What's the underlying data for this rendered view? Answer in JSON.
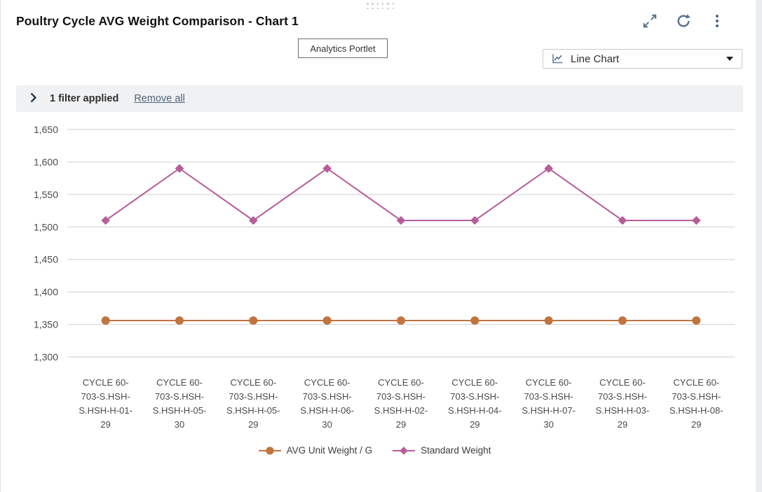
{
  "header": {
    "title": "Poultry Cycle AVG Weight Comparison - Chart 1",
    "portlet_label": "Analytics Portlet"
  },
  "toolbar": {
    "chart_type_label": "Line Chart"
  },
  "filter_bar": {
    "applied_label": "1 filter applied",
    "remove_all_label": "Remove all"
  },
  "chart_data": {
    "type": "line",
    "title": "Poultry Cycle AVG Weight Comparison - Chart 1",
    "categories": [
      "CYCLE 60-703-S.HSH-S.HSH-H-01-29",
      "CYCLE 60-703-S.HSH-S.HSH-H-05-30",
      "CYCLE 60-703-S.HSH-S.HSH-H-05-29",
      "CYCLE 60-703-S.HSH-S.HSH-H-06-30",
      "CYCLE 60-703-S.HSH-S.HSH-H-02-29",
      "CYCLE 60-703-S.HSH-S.HSH-H-04-29",
      "CYCLE 60-703-S.HSH-S.HSH-H-07-30",
      "CYCLE 60-703-S.HSH-S.HSH-H-03-29",
      "CYCLE 60-703-S.HSH-S.HSH-H-08-29"
    ],
    "series": [
      {
        "name": "AVG Unit Weight / G",
        "marker": "circle",
        "color": "#c17440",
        "values": [
          1356,
          1356,
          1356,
          1356,
          1356,
          1356,
          1356,
          1356,
          1356
        ]
      },
      {
        "name": "Standard Weight",
        "marker": "diamond",
        "color": "#b75d99",
        "values": [
          1510,
          1590,
          1510,
          1590,
          1510,
          1510,
          1590,
          1510,
          1510
        ]
      }
    ],
    "ylim": [
      1300,
      1650
    ],
    "ytick_step": 50,
    "yticks": [
      {
        "value": 1650,
        "label": "1,650"
      },
      {
        "value": 1600,
        "label": "1,600"
      },
      {
        "value": 1550,
        "label": "1,550"
      },
      {
        "value": 1500,
        "label": "1,500"
      },
      {
        "value": 1450,
        "label": "1,450"
      },
      {
        "value": 1400,
        "label": "1,400"
      },
      {
        "value": 1350,
        "label": "1,350"
      },
      {
        "value": 1300,
        "label": "1,300"
      }
    ],
    "grid": true,
    "legend_position": "bottom"
  },
  "colors": {
    "icon_accent": "#54708e",
    "gridline": "#d8d8d8",
    "filter_bg": "#eff1f3",
    "series_avg_unit_weight": "#c17440",
    "series_standard_weight": "#b75d99"
  }
}
